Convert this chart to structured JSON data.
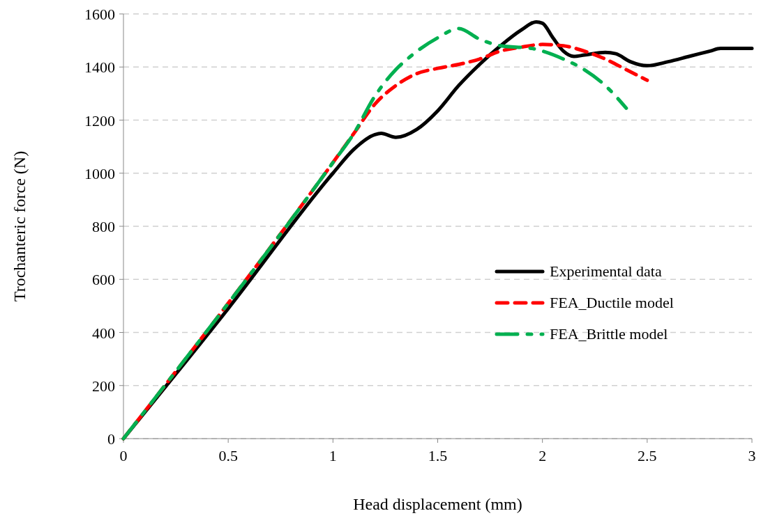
{
  "chart_data": {
    "type": "line",
    "xlabel": "Head displacement (mm)",
    "ylabel": "Trochanteric force (N)",
    "xlim": [
      0,
      3
    ],
    "xticks": [
      0,
      0.5,
      1,
      1.5,
      2,
      2.5,
      3
    ],
    "ylim": [
      0,
      1600
    ],
    "yticks": [
      0,
      200,
      400,
      600,
      800,
      1000,
      1200,
      1400,
      1600
    ],
    "grid": "y",
    "legend": "right",
    "series": [
      {
        "name": "Experimental data",
        "color": "#000000",
        "line_style": "solid",
        "x": [
          0,
          0.5,
          1,
          1.1,
          1.2,
          1.23,
          1.3,
          1.4,
          1.5,
          1.6,
          1.7,
          1.8,
          1.9,
          1.97,
          2,
          2.05,
          2.1,
          2.15,
          2.2,
          2.3,
          2.35,
          2.42,
          2.5,
          2.6,
          2.7,
          2.8,
          2.85,
          2.95,
          3
        ],
        "values": [
          0,
          490,
          1000,
          1090,
          1145,
          1150,
          1135,
          1165,
          1235,
          1330,
          1410,
          1480,
          1540,
          1570,
          1565,
          1510,
          1460,
          1440,
          1445,
          1455,
          1450,
          1420,
          1405,
          1420,
          1440,
          1460,
          1470,
          1470,
          1470
        ]
      },
      {
        "name": "FEA_Ductile model",
        "color": "#ff0000",
        "line_style": "dashed",
        "x": [
          0,
          0.5,
          1,
          1.1,
          1.2,
          1.3,
          1.4,
          1.5,
          1.6,
          1.7,
          1.8,
          1.9,
          2,
          2.1,
          2.2,
          2.3,
          2.4,
          2.5
        ],
        "values": [
          0,
          510,
          1040,
          1150,
          1260,
          1330,
          1375,
          1395,
          1410,
          1430,
          1460,
          1475,
          1485,
          1480,
          1460,
          1430,
          1390,
          1350
        ]
      },
      {
        "name": "FEA_Brittle model",
        "color": "#00b050",
        "line_style": "longdash",
        "x": [
          0,
          1,
          1.1,
          1.2,
          1.3,
          1.37,
          1.5,
          1.6,
          1.7,
          1.8,
          1.95,
          2,
          2.1,
          2.2,
          2.3,
          2.4
        ],
        "values": [
          0,
          1040,
          1150,
          1290,
          1390,
          1440,
          1510,
          1545,
          1505,
          1480,
          1470,
          1460,
          1430,
          1390,
          1330,
          1245
        ]
      }
    ]
  }
}
